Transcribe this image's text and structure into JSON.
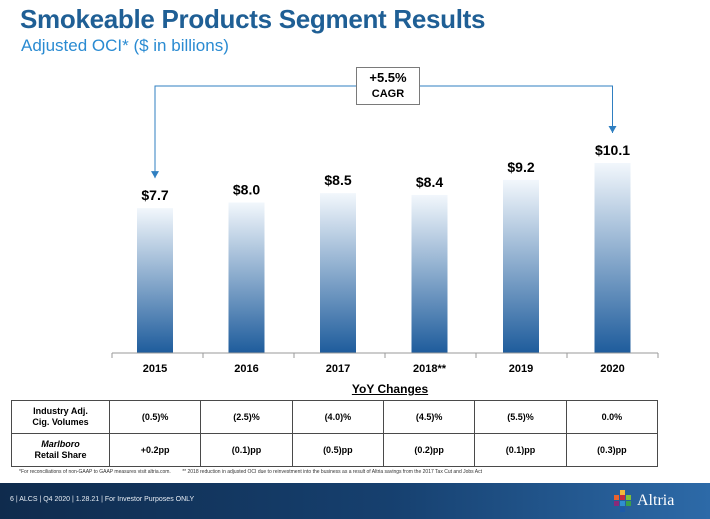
{
  "header": {
    "title": "Smokeable Products Segment Results",
    "subtitle": "Adjusted OCI* ($ in billions)"
  },
  "chart_data": {
    "type": "bar",
    "categories": [
      "2015",
      "2016",
      "2017",
      "2018**",
      "2019",
      "2020"
    ],
    "values": [
      7.7,
      8.0,
      8.5,
      8.4,
      9.2,
      10.1
    ],
    "value_labels": [
      "$7.7",
      "$8.0",
      "$8.5",
      "$8.4",
      "$9.2",
      "$10.1"
    ],
    "ylim": [
      0,
      10.1
    ],
    "grid": false,
    "annotation": {
      "value": "+5.5%",
      "label": "CAGR",
      "from": "2015",
      "to": "2020"
    }
  },
  "yoy": {
    "title": "YoY Changes",
    "rows": [
      {
        "label_lines": [
          "Industry Adj.",
          "Cig. Volumes"
        ],
        "values": [
          "(0.5)%",
          "(2.5)%",
          "(4.0)%",
          "(4.5)%",
          "(5.5)%",
          "0.0%"
        ]
      },
      {
        "label_lines": [
          "Marlboro",
          "Retail Share"
        ],
        "values": [
          "+0.2pp",
          "(0.1)pp",
          "(0.5)pp",
          "(0.2)pp",
          "(0.1)pp",
          "(0.3)pp"
        ]
      }
    ]
  },
  "footnotes": {
    "note1": "*For reconciliations of non-GAAP to GAAP measures visit altria.com.",
    "note2": "** 2018 reduction in adjusted OCI due to reinvestment into the business as a result of Altria savings from the 2017 Tax Cut and Jobs Act"
  },
  "footer": {
    "text": "6 | ALCS | Q4 2020 | 1.28.21 | For Investor Purposes ONLY",
    "brand": "Altria"
  },
  "colors": {
    "title": "#1f5f95",
    "subtitle": "#2a8bd2",
    "bar_top": "#f2f7fc",
    "bar_bottom": "#1e5c9c",
    "connector": "#2f7fc1"
  }
}
